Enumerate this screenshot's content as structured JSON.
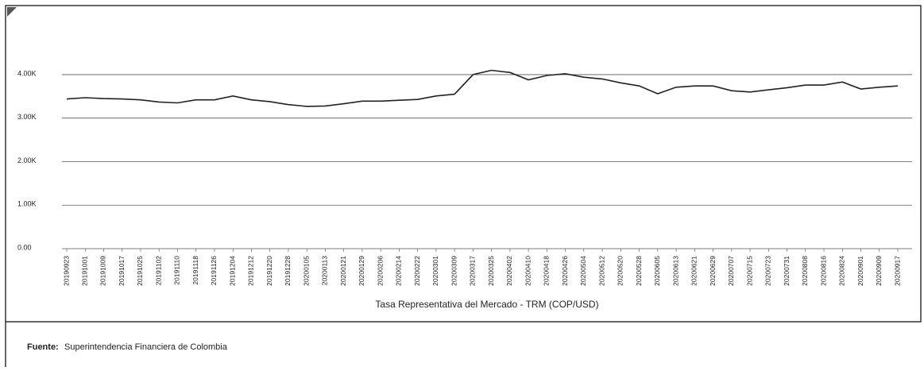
{
  "chart_data": {
    "type": "line",
    "x_label": "Tasa Representativa del Mercado - TRM (COP/USD)",
    "categories": [
      "20190923",
      "20191001",
      "20191009",
      "20191017",
      "20191025",
      "20191102",
      "20191110",
      "20191118",
      "20191126",
      "20191204",
      "20191212",
      "20191220",
      "20191228",
      "20200105",
      "20200113",
      "20200121",
      "20200129",
      "20200206",
      "20200214",
      "20200222",
      "20200301",
      "20200309",
      "20200317",
      "20200325",
      "20200402",
      "20200410",
      "20200418",
      "20200426",
      "20200504",
      "20200512",
      "20200520",
      "20200528",
      "20200605",
      "20200613",
      "20200621",
      "20200629",
      "20200707",
      "20200715",
      "20200723",
      "20200731",
      "20200808",
      "20200816",
      "20200824",
      "20200901",
      "20200909",
      "20200917"
    ],
    "series": [
      {
        "name": "TRM",
        "color": "#222222",
        "values": [
          3440,
          3470,
          3450,
          3440,
          3420,
          3370,
          3350,
          3420,
          3420,
          3510,
          3420,
          3380,
          3310,
          3270,
          3280,
          3330,
          3390,
          3390,
          3410,
          3430,
          3510,
          3550,
          4000,
          4100,
          4050,
          3880,
          3980,
          4020,
          3940,
          3900,
          3810,
          3740,
          3560,
          3710,
          3740,
          3740,
          3630,
          3600,
          3650,
          3700,
          3760,
          3760,
          3830,
          3670,
          3710,
          3740
        ]
      }
    ],
    "ylim": [
      0,
      5350
    ],
    "yticks": [
      {
        "value": 0,
        "label": "0.00"
      },
      {
        "value": 1000,
        "label": "1.00K"
      },
      {
        "value": 2000,
        "label": "2.00K"
      },
      {
        "value": 3000,
        "label": "3.00K"
      },
      {
        "value": 4000,
        "label": "4.00K"
      }
    ],
    "grid": true
  },
  "source": {
    "label": "Fuente:",
    "text": "Superintendencia Financiera de Colombia"
  }
}
